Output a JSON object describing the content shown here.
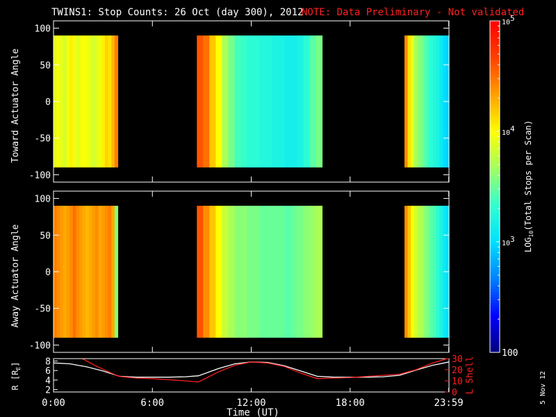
{
  "title": "TWINS1: Stop Counts: 26 Oct (day 300), 2012",
  "note": "NOTE: Data Preliminary - Not validated",
  "note_color": "#ff2020",
  "date_stamp": "5 Nov 12",
  "chart_data": [
    {
      "type": "heatmap",
      "panel": "toward",
      "ylabel": "Toward Actuator Angle",
      "ylim": [
        -110,
        110
      ],
      "yticks": [
        100,
        50,
        0,
        -50,
        -100
      ],
      "xlim": [
        0,
        24
      ],
      "data_yrange": [
        -90,
        90
      ],
      "data_segments": [
        {
          "start": 0.0,
          "end": 3.9,
          "band_values": [
            3.9,
            4.0,
            3.9,
            3.85,
            3.95,
            4.05,
            3.95,
            3.9,
            3.95,
            4.0,
            3.95,
            3.9,
            3.85,
            3.9,
            3.95,
            4.05,
            4.15,
            4.1,
            4.25,
            4.45
          ]
        },
        {
          "start": 8.7,
          "end": 16.3,
          "band_values": [
            4.6,
            4.5,
            4.2,
            4.0,
            3.7,
            3.55,
            3.4,
            3.35,
            3.3,
            3.3,
            3.25,
            3.25,
            3.2,
            3.2,
            3.15,
            3.15,
            3.2,
            3.3,
            3.45,
            3.55
          ]
        },
        {
          "start": 21.3,
          "end": 24.0,
          "band_values": [
            4.4,
            4.1,
            3.9,
            3.7,
            3.6,
            3.55,
            3.45,
            3.35,
            3.3,
            3.25,
            3.2,
            3.1,
            3.0,
            2.95
          ]
        }
      ]
    },
    {
      "type": "heatmap",
      "panel": "away",
      "ylabel": "Away Actuator Angle",
      "ylim": [
        -110,
        110
      ],
      "yticks": [
        100,
        50,
        0,
        -50,
        -100
      ],
      "xlim": [
        0,
        24
      ],
      "data_yrange": [
        -90,
        90
      ],
      "data_segments": [
        {
          "start": 0.0,
          "end": 3.9,
          "band_values": [
            4.45,
            4.4,
            4.35,
            4.3,
            4.35,
            4.4,
            4.5,
            4.4,
            4.35,
            4.3,
            4.25,
            4.3,
            4.35,
            4.4,
            4.3,
            4.35,
            4.4,
            4.45,
            4.3,
            3.6
          ]
        },
        {
          "start": 8.7,
          "end": 16.3,
          "band_values": [
            4.6,
            4.4,
            4.2,
            4.0,
            3.8,
            3.7,
            3.6,
            3.6,
            3.55,
            3.55,
            3.5,
            3.5,
            3.5,
            3.5,
            3.45,
            3.5,
            3.55,
            3.6,
            3.65,
            3.7
          ]
        },
        {
          "start": 21.3,
          "end": 24.0,
          "band_values": [
            4.4,
            4.2,
            4.0,
            3.85,
            3.75,
            3.7,
            3.6,
            3.55,
            3.45,
            3.4,
            3.3,
            3.2,
            3.1,
            3.0
          ]
        }
      ]
    },
    {
      "type": "line",
      "panel": "orbit",
      "ylabel": "R [R",
      "ylabel_sub": "E",
      "ylabel_suffix": "]",
      "ylim": [
        1.5,
        8.5
      ],
      "yticks": [
        8,
        6,
        4,
        2
      ],
      "y2label": "L Shell",
      "y2lim": [
        0,
        30
      ],
      "y2ticks": [
        30,
        20,
        10,
        0
      ],
      "xlim": [
        0,
        24
      ],
      "series": [
        {
          "name": "R",
          "color": "#ffffff",
          "axis": "left",
          "x": [
            0,
            1,
            2,
            3,
            4,
            5,
            6,
            7,
            8,
            8.8,
            10,
            11,
            12,
            13,
            14,
            15,
            16,
            17,
            18,
            19,
            20,
            21,
            22,
            23,
            24
          ],
          "y": [
            7.6,
            7.4,
            6.8,
            5.9,
            4.8,
            4.6,
            4.6,
            4.6,
            4.7,
            4.9,
            6.4,
            7.4,
            7.8,
            7.7,
            7.0,
            5.9,
            4.8,
            4.6,
            4.6,
            4.6,
            4.7,
            5.0,
            6.1,
            7.1,
            7.8
          ]
        },
        {
          "name": "L Shell",
          "color": "#ff2020",
          "axis": "right",
          "x": [
            1.75,
            2.5,
            3.5,
            4.0,
            5.0,
            6.0,
            7.0,
            8.0,
            8.8,
            10.0,
            11.0,
            12.0,
            13.0,
            14.0,
            15.0,
            16.0,
            17.0,
            18.0,
            19.0,
            20.0,
            21.0,
            22.0,
            23.0,
            23.9
          ],
          "y": [
            30,
            24,
            17,
            14,
            12.5,
            12,
            11,
            10,
            9,
            18,
            24,
            27,
            26,
            23,
            17,
            12,
            12.5,
            13,
            14,
            15,
            16,
            20,
            26,
            30
          ]
        }
      ]
    }
  ],
  "xaxis": {
    "label": "Time (UT)",
    "tick_values": [
      0,
      6,
      12,
      18,
      23.983
    ],
    "tick_labels": [
      "0:00",
      "6:00",
      "12:00",
      "18:00",
      "23:59"
    ]
  },
  "colorbar": {
    "label_prefix": "LOG",
    "label_sub": "10",
    "label_suffix": "(Total Stops per Scan)",
    "tick_values": [
      5,
      4,
      3,
      2
    ],
    "tick_labels": [
      {
        "base": "10",
        "exp": "5"
      },
      {
        "base": "10",
        "exp": "4"
      },
      {
        "base": "10",
        "exp": "3"
      },
      {
        "base": "100",
        "exp": ""
      }
    ],
    "range": [
      2,
      5
    ],
    "colors": [
      "#00007a",
      "#0000ff",
      "#0080ff",
      "#00e0ff",
      "#30ffd0",
      "#a0ff60",
      "#ffff00",
      "#ffa000",
      "#ff4000",
      "#ff0000"
    ]
  }
}
